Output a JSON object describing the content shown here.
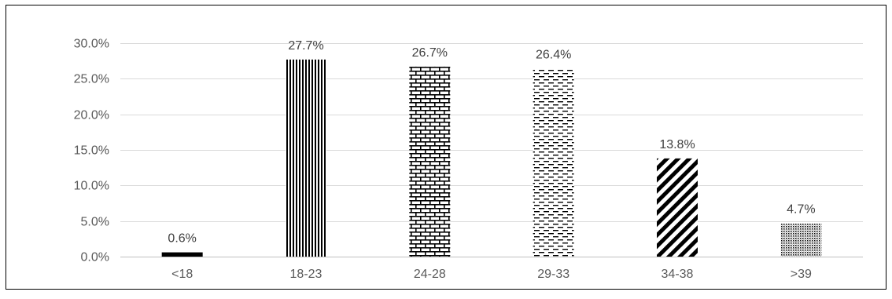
{
  "chart_data": {
    "type": "bar",
    "title": "",
    "xlabel": "",
    "ylabel": "",
    "categories": [
      "<18",
      "18-23",
      "24-28",
      "29-33",
      "34-38",
      ">39"
    ],
    "values": [
      0.6,
      27.7,
      26.7,
      26.4,
      13.8,
      4.7
    ],
    "data_labels": [
      "0.6%",
      "27.7%",
      "26.7%",
      "26.4%",
      "13.8%",
      "4.7%"
    ],
    "patterns": [
      "solid",
      "vertical-lines",
      "bricks",
      "dashes",
      "diagonal-stripes",
      "dots"
    ],
    "ylim": [
      0,
      30
    ],
    "yticks": [
      0,
      5,
      10,
      15,
      20,
      25,
      30
    ],
    "ytick_labels": [
      "0.0%",
      "5.0%",
      "10.0%",
      "15.0%",
      "20.0%",
      "25.0%",
      "30.0%"
    ],
    "grid": true,
    "legend": "none",
    "bar_color": "#000000",
    "grid_color": "#d9d9d9",
    "border_color": "#000000"
  }
}
